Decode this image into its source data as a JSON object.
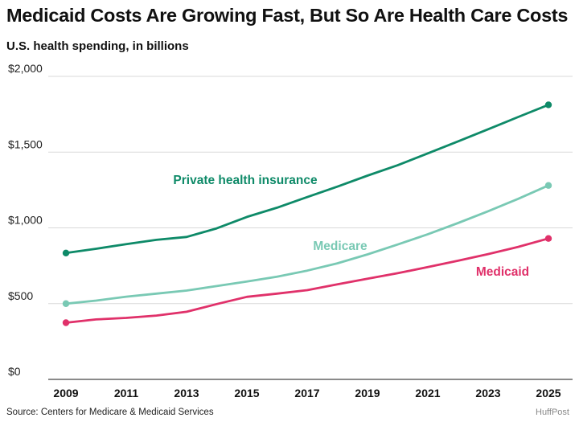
{
  "title": "Medicaid Costs Are Growing Fast, But So Are Health Care Costs",
  "subtitle": "U.S. health spending, in billions",
  "source": "Source: Centers for Medicare & Medicaid Services",
  "brand": "HuffPost",
  "chart_data": {
    "type": "line",
    "title": "Medicaid Costs Are Growing Fast, But So Are Health Care Costs",
    "ylabel": "U.S. health spending, in billions",
    "xlabel": "",
    "x": [
      2009,
      2010,
      2011,
      2012,
      2013,
      2014,
      2015,
      2016,
      2017,
      2018,
      2019,
      2020,
      2021,
      2022,
      2023,
      2024,
      2025
    ],
    "xticks": [
      "2009",
      "2011",
      "2013",
      "2015",
      "2017",
      "2019",
      "2021",
      "2023",
      "2025"
    ],
    "yticks": [
      "$0",
      "$500",
      "$1,000",
      "$1,500",
      "$2,000"
    ],
    "ytick_values": [
      0,
      500,
      1000,
      1500,
      2000
    ],
    "ylim": [
      0,
      2000
    ],
    "xlim": [
      2009,
      2025
    ],
    "grid": true,
    "series": [
      {
        "name": "Private health insurance",
        "color": "#0e8a68",
        "values": [
          834,
          862,
          893,
          921,
          940,
          997,
          1072,
          1133,
          1203,
          1272,
          1345,
          1413,
          1492,
          1571,
          1651,
          1732,
          1812
        ]
      },
      {
        "name": "Medicare",
        "color": "#79c9b4",
        "values": [
          500,
          520,
          546,
          566,
          586,
          616,
          646,
          678,
          718,
          766,
          825,
          890,
          958,
          1032,
          1110,
          1192,
          1280
        ]
      },
      {
        "name": "Medicaid",
        "color": "#e0316a",
        "values": [
          374,
          396,
          406,
          421,
          446,
          497,
          545,
          566,
          589,
          627,
          664,
          701,
          741,
          783,
          827,
          875,
          930
        ]
      }
    ]
  }
}
